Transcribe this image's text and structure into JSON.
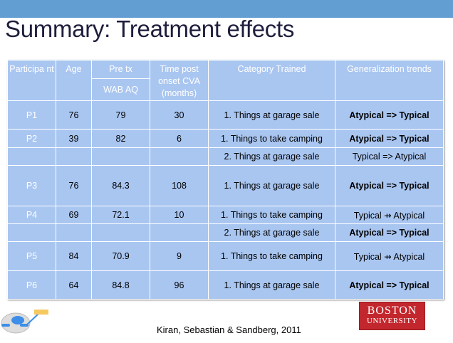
{
  "title": "Summary: Treatment effects",
  "table": {
    "headers": {
      "participant": "Participa nt",
      "age": "Age",
      "pretx": "Pre tx",
      "wab": "WAB AQ",
      "time": "Time post onset CVA (months)",
      "category": "Category Trained",
      "generalization": "Generalization trends"
    },
    "rows": [
      {
        "p": "P1",
        "age": "76",
        "wab": "79",
        "time": "30",
        "cat": "1. Things at garage sale",
        "gen": "Atypical => Typical",
        "bold": true
      },
      {
        "p": "P2",
        "age": "39",
        "wab": "82",
        "time": "6",
        "cat": "1. Things to take camping",
        "gen": "Atypical => Typical",
        "bold": true
      },
      {
        "p": "",
        "age": "",
        "wab": "",
        "time": "",
        "cat": "2. Things at garage sale",
        "gen": "Typical =>  Atypical",
        "bold": false
      },
      {
        "p": "P3",
        "age": "76",
        "wab": "84.3",
        "time": "108",
        "cat": "1. Things at garage sale",
        "gen": "Atypical => Typical",
        "bold": true
      },
      {
        "p": "P4",
        "age": "69",
        "wab": "72.1",
        "time": "10",
        "cat": "1. Things to take camping",
        "gen": "Typical ⇸ Atypical",
        "bold": false
      },
      {
        "p": "",
        "age": "",
        "wab": "",
        "time": "",
        "cat": "2. Things at garage sale",
        "gen": "Atypical => Typical",
        "bold": true
      },
      {
        "p": "P5",
        "age": "84",
        "wab": "70.9",
        "time": "9",
        "cat": "1. Things to take camping",
        "gen": "Typical ⇸ Atypical",
        "bold": false
      },
      {
        "p": "P6",
        "age": "64",
        "wab": "84.8",
        "time": "96",
        "cat": "1. Things at garage sale",
        "gen": "Atypical => Typical",
        "bold": true
      }
    ]
  },
  "citation": "Kiran, Sebastian & Sandberg, 2011",
  "logo": {
    "line1": "BOSTON",
    "line2": "UNIVERSITY"
  }
}
